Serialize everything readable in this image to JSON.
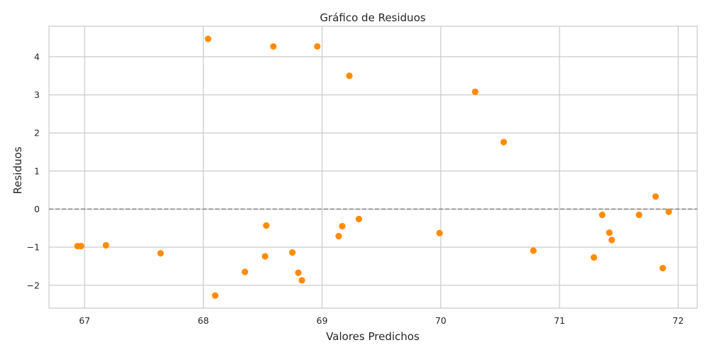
{
  "chart_data": {
    "type": "scatter",
    "title": "Gráfico de Residuos",
    "xlabel": "Valores Predichos",
    "ylabel": "Residuos",
    "xlim": [
      66.7,
      72.16
    ],
    "ylim": [
      -2.6,
      4.8
    ],
    "xticks": [
      67,
      68,
      69,
      70,
      71,
      72
    ],
    "xtick_labels": [
      "67",
      "68",
      "69",
      "70",
      "71",
      "72"
    ],
    "yticks": [
      -2,
      -1,
      0,
      1,
      2,
      3,
      4
    ],
    "ytick_labels": [
      "−2",
      "−1",
      "0",
      "1",
      "2",
      "3",
      "4"
    ],
    "grid": true,
    "reference_line": {
      "y": 0,
      "style": "dashed",
      "color": "#808080"
    },
    "point_color": "#ff8c00",
    "points": [
      {
        "x": 66.94,
        "y": -0.97
      },
      {
        "x": 66.97,
        "y": -0.97
      },
      {
        "x": 67.18,
        "y": -0.95
      },
      {
        "x": 67.64,
        "y": -1.16
      },
      {
        "x": 68.04,
        "y": 4.47
      },
      {
        "x": 68.1,
        "y": -2.27
      },
      {
        "x": 68.35,
        "y": -1.65
      },
      {
        "x": 68.52,
        "y": -1.24
      },
      {
        "x": 68.53,
        "y": -0.43
      },
      {
        "x": 68.59,
        "y": 4.27
      },
      {
        "x": 68.75,
        "y": -1.14
      },
      {
        "x": 68.8,
        "y": -1.67
      },
      {
        "x": 68.83,
        "y": -1.87
      },
      {
        "x": 68.96,
        "y": 4.27
      },
      {
        "x": 69.14,
        "y": -0.71
      },
      {
        "x": 69.17,
        "y": -0.45
      },
      {
        "x": 69.23,
        "y": 3.5
      },
      {
        "x": 69.31,
        "y": -0.26
      },
      {
        "x": 69.99,
        "y": -0.63
      },
      {
        "x": 70.29,
        "y": 3.08
      },
      {
        "x": 70.53,
        "y": 1.76
      },
      {
        "x": 70.78,
        "y": -1.09
      },
      {
        "x": 71.29,
        "y": -1.27
      },
      {
        "x": 71.36,
        "y": -0.15
      },
      {
        "x": 71.42,
        "y": -0.62
      },
      {
        "x": 71.44,
        "y": -0.81
      },
      {
        "x": 71.67,
        "y": -0.15
      },
      {
        "x": 71.81,
        "y": 0.33
      },
      {
        "x": 71.87,
        "y": -1.55
      },
      {
        "x": 71.92,
        "y": -0.07
      }
    ]
  }
}
